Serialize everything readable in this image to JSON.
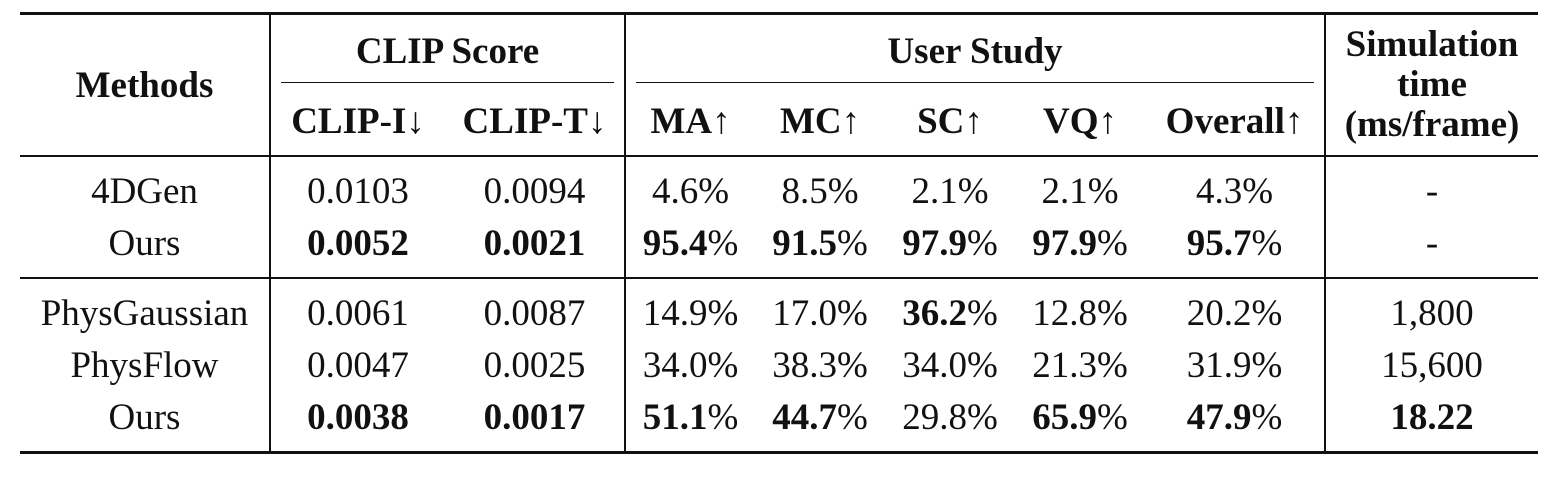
{
  "table": {
    "headers": {
      "methods": "Methods",
      "clip_score": "CLIP Score",
      "user_study": "User Study",
      "simulation_time": [
        "Simulation",
        "time",
        "(ms/frame)"
      ],
      "sub": [
        "CLIP-I↓",
        "CLIP-T↓",
        "MA↑",
        "MC↑",
        "SC↑",
        "VQ↑",
        "Overall↑"
      ]
    },
    "group1": [
      {
        "method": "4DGen",
        "clip_i": "0.0103",
        "clip_t": "0.0094",
        "ma": "4.6",
        "mc": "8.5",
        "sc": "2.1",
        "vq": "2.1",
        "overall": "4.3",
        "time": "-"
      },
      {
        "method": "Ours",
        "clip_i": "0.0052",
        "clip_t": "0.0021",
        "ma": "95.4",
        "mc": "91.5",
        "sc": "97.9",
        "vq": "97.9",
        "overall": "95.7",
        "time": "-"
      }
    ],
    "group2": [
      {
        "method": "PhysGaussian",
        "clip_i": "0.0061",
        "clip_t": "0.0087",
        "ma": "14.9",
        "mc": "17.0",
        "sc": "36.2",
        "vq": "12.8",
        "overall": "20.2",
        "time": "1,800"
      },
      {
        "method": "PhysFlow",
        "clip_i": "0.0047",
        "clip_t": "0.0025",
        "ma": "34.0",
        "mc": "38.3",
        "sc": "34.0",
        "vq": "21.3",
        "overall": "31.9",
        "time": "15,600"
      },
      {
        "method": "Ours",
        "clip_i": "0.0038",
        "clip_t": "0.0017",
        "ma": "51.1",
        "mc": "44.7",
        "sc": "29.8",
        "vq": "65.9",
        "overall": "47.9",
        "time": "18.22"
      }
    ],
    "percent_sign": "%"
  }
}
